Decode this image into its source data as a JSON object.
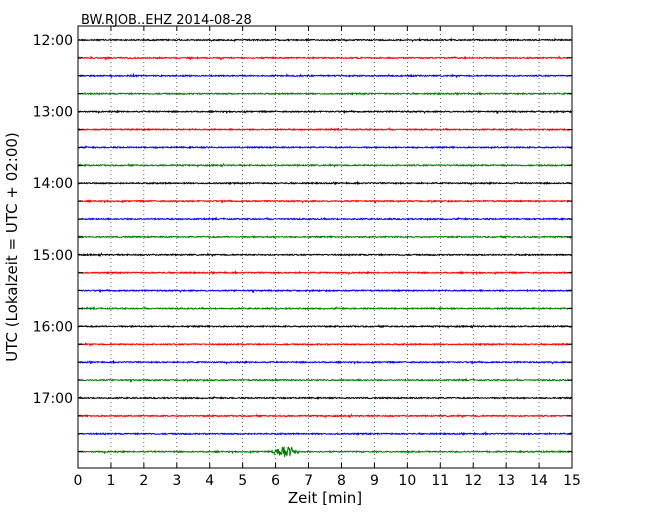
{
  "chart_data": {
    "type": "line",
    "title": "BW.RJOB..EHZ 2014-08-28",
    "xlabel": "Zeit  [min]",
    "ylabel": "UTC (Lokalzeit = UTC + 02:00)",
    "xlim": [
      0,
      15
    ],
    "x_ticks": [
      "0",
      "1",
      "2",
      "3",
      "4",
      "5",
      "6",
      "7",
      "8",
      "9",
      "10",
      "11",
      "12",
      "13",
      "14",
      "15"
    ],
    "y_tick_labels": [
      "12:00",
      "13:00",
      "14:00",
      "15:00",
      "16:00",
      "17:00"
    ],
    "grid": "x-dotted",
    "trace_colors": [
      "#000000",
      "#ff0000",
      "#0000ff",
      "#008000"
    ],
    "series": [
      {
        "start": "12:00",
        "noise_level": 0.6
      },
      {
        "start": "12:15",
        "noise_level": 0.6
      },
      {
        "start": "12:30",
        "noise_level": 0.6
      },
      {
        "start": "12:45",
        "noise_level": 0.6
      },
      {
        "start": "13:00",
        "noise_level": 0.6
      },
      {
        "start": "13:15",
        "noise_level": 0.6
      },
      {
        "start": "13:30",
        "noise_level": 0.6
      },
      {
        "start": "13:45",
        "noise_level": 0.6
      },
      {
        "start": "14:00",
        "noise_level": 0.6
      },
      {
        "start": "14:15",
        "noise_level": 0.6
      },
      {
        "start": "14:30",
        "noise_level": 0.6
      },
      {
        "start": "14:45",
        "noise_level": 0.6
      },
      {
        "start": "15:00",
        "noise_level": 0.6
      },
      {
        "start": "15:15",
        "noise_level": 0.6
      },
      {
        "start": "15:30",
        "noise_level": 0.6
      },
      {
        "start": "15:45",
        "noise_level": 0.6
      },
      {
        "start": "16:00",
        "noise_level": 0.6
      },
      {
        "start": "16:15",
        "noise_level": 0.6
      },
      {
        "start": "16:30",
        "noise_level": 0.6
      },
      {
        "start": "16:45",
        "noise_level": 0.6
      },
      {
        "start": "17:00",
        "noise_level": 0.6
      },
      {
        "start": "17:15",
        "noise_level": 0.6
      },
      {
        "start": "17:30",
        "noise_level": 0.6
      },
      {
        "start": "17:45",
        "noise_level": 0.6,
        "event": {
          "x_start": 5.8,
          "x_end": 6.8,
          "peak": 7
        }
      }
    ]
  }
}
